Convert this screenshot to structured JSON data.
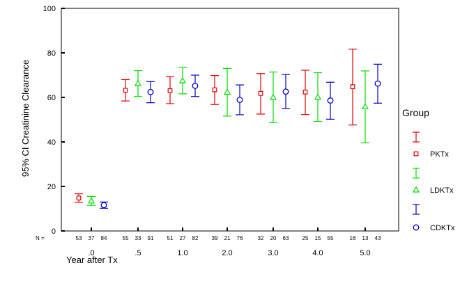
{
  "chart_data": {
    "type": "errorbar",
    "ylabel": "95% CI Creatinine Clearance",
    "xlabel": "Year after Tx",
    "ylim": [
      0,
      100
    ],
    "yticks": [
      0,
      20,
      40,
      60,
      80,
      100
    ],
    "categories": [
      ".0",
      ".5",
      "1.0",
      "2.0",
      "3.0",
      "4.0",
      "5.0"
    ],
    "n_label": "N =",
    "legend_title": "Group",
    "legend_position": "right",
    "series": [
      {
        "name": "PKTx",
        "color": "#e00000",
        "marker": "square",
        "n": [
          "53",
          "55",
          "51",
          "39",
          "32",
          "25",
          "16"
        ],
        "mean": [
          14.8,
          63.2,
          63.0,
          63.4,
          61.8,
          62.4,
          64.8
        ],
        "lower": [
          12.9,
          58.4,
          57.2,
          56.8,
          52.5,
          52.3,
          47.6
        ],
        "upper": [
          16.7,
          68.0,
          69.3,
          69.8,
          70.7,
          72.2,
          81.7
        ]
      },
      {
        "name": "LDKTx",
        "color": "#00dd00",
        "marker": "triangle",
        "n": [
          "37",
          "33",
          "27",
          "21",
          "20",
          "15",
          "13"
        ],
        "mean": [
          13.5,
          66.2,
          67.5,
          62.3,
          60.0,
          60.1,
          55.8
        ],
        "lower": [
          11.5,
          60.4,
          61.6,
          51.6,
          48.7,
          49.2,
          39.6
        ],
        "upper": [
          15.5,
          72.0,
          73.5,
          73.0,
          71.4,
          71.1,
          71.9
        ]
      },
      {
        "name": "CDKTx",
        "color": "#0000cc",
        "marker": "circle",
        "n": [
          "84",
          "91",
          "82",
          "76",
          "63",
          "55",
          "43"
        ],
        "mean": [
          11.6,
          62.4,
          65.2,
          58.9,
          62.6,
          58.6,
          66.2
        ],
        "lower": [
          10.2,
          57.6,
          60.4,
          52.2,
          55.0,
          50.2,
          57.4
        ],
        "upper": [
          13.0,
          67.1,
          70.0,
          65.6,
          70.3,
          66.8,
          74.9
        ]
      }
    ]
  }
}
